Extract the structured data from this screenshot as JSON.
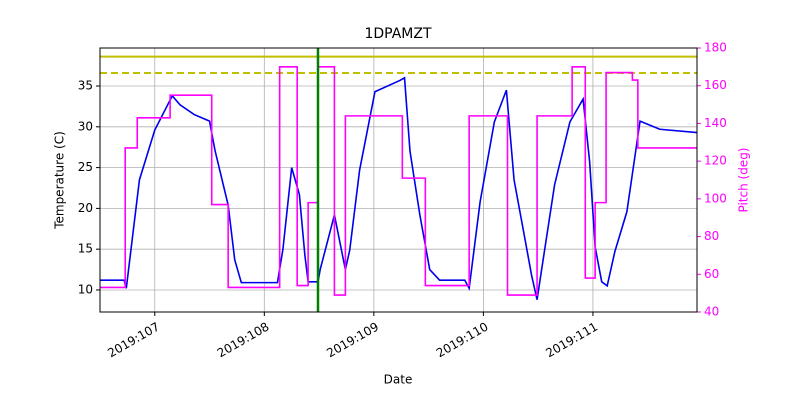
{
  "chart_data": {
    "type": "line",
    "title": "1DPAMZT",
    "xlabel": "Date",
    "ylabel": "Temperature (C)",
    "y2label": "Pitch (deg)",
    "xlim": [
      106.5,
      111.95
    ],
    "xticks": [
      {
        "value": 107,
        "label": "2019:107"
      },
      {
        "value": 108,
        "label": "2019:108"
      },
      {
        "value": 109,
        "label": "2019:109"
      },
      {
        "value": 110,
        "label": "2019:110"
      },
      {
        "value": 111,
        "label": "2019:111"
      }
    ],
    "ylim": [
      7.3,
      39.66
    ],
    "yticks": [
      10,
      15,
      20,
      25,
      30,
      35
    ],
    "y2lim": [
      40,
      180
    ],
    "y2ticks": [
      40,
      60,
      80,
      100,
      120,
      140,
      160,
      180
    ],
    "y2color": "#ff00ff",
    "grid": true,
    "series": [
      {
        "color": "#0000ee",
        "x": [
          106.5,
          106.72,
          106.74,
          106.86,
          107.0,
          107.16,
          107.23,
          107.36,
          107.5,
          107.55,
          107.67,
          107.73,
          107.79,
          108.12,
          108.17,
          108.25,
          108.32,
          108.37,
          108.4,
          108.49,
          108.51,
          108.64,
          108.74,
          108.78,
          108.87,
          109.01,
          109.24,
          109.28,
          109.33,
          109.42,
          109.51,
          109.6,
          109.83,
          109.87,
          109.97,
          110.1,
          110.21,
          110.28,
          110.38,
          110.44,
          110.49,
          110.51,
          110.65,
          110.79,
          110.91,
          110.97,
          111.02,
          111.08,
          111.13,
          111.2,
          111.31,
          111.43,
          111.61,
          111.95
        ],
        "values": [
          11.2,
          11.2,
          10.2,
          23.5,
          29.6,
          33.8,
          32.7,
          31.5,
          30.7,
          27.1,
          20.4,
          13.7,
          10.9,
          10.9,
          15,
          25,
          21.7,
          14.3,
          11,
          11,
          12.5,
          19.2,
          12.5,
          14.9,
          24.7,
          34.3,
          35.7,
          36,
          27,
          19.2,
          12.5,
          11.2,
          11.2,
          10.2,
          20.8,
          30.6,
          34.5,
          23.5,
          16.2,
          11.8,
          8.8,
          10.6,
          22.9,
          30.6,
          33.4,
          25.7,
          15.3,
          11,
          10.5,
          14.7,
          19.6,
          30.7,
          29.7,
          29.3
        ]
      },
      {
        "color": "#ff00ff",
        "axis": "y2",
        "step": "post",
        "x": [
          106.5,
          106.73,
          106.84,
          107.14,
          107.52,
          107.67,
          108.14,
          108.3,
          108.4,
          108.49,
          108.64,
          108.74,
          109.26,
          109.47,
          109.87,
          110.22,
          110.49,
          110.81,
          110.93,
          111.02,
          111.12,
          111.36,
          111.41,
          111.95
        ],
        "values": [
          53,
          127,
          143,
          155,
          97,
          53,
          170,
          54,
          98,
          170,
          49,
          144,
          111,
          54,
          144,
          49,
          144,
          170,
          58,
          98,
          167,
          163,
          127,
          127
        ]
      }
    ],
    "hlines": [
      {
        "value": 38.6,
        "color": "#bfbf00",
        "style": "solid"
      },
      {
        "value": 36.6,
        "color": "#bfbf00",
        "style": "dashed"
      }
    ],
    "vlines": [
      {
        "value": 108.49,
        "color": "#008000"
      }
    ]
  }
}
